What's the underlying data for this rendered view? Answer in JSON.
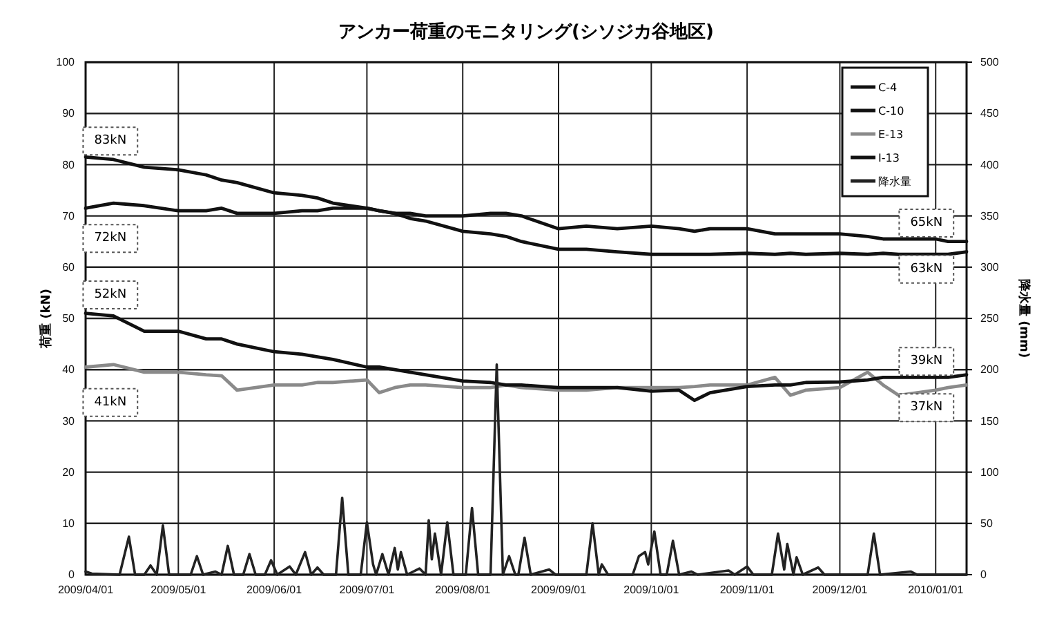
{
  "chart_data": {
    "type": "line",
    "title": "アンカー荷重のモニタリング(シソジカ谷地区)",
    "ylabel": "荷重 (kN)",
    "y2label": "降水量 (mm)",
    "x": [
      "2009-04-01",
      "2009-04-10",
      "2009-04-20",
      "2009-05-01",
      "2009-05-10",
      "2009-05-15",
      "2009-05-20",
      "2009-06-01",
      "2009-06-10",
      "2009-06-15",
      "2009-06-20",
      "2009-07-01",
      "2009-07-05",
      "2009-07-10",
      "2009-07-15",
      "2009-07-20",
      "2009-08-01",
      "2009-08-10",
      "2009-08-15",
      "2009-08-20",
      "2009-09-01",
      "2009-09-10",
      "2009-09-20",
      "2009-10-01",
      "2009-10-10",
      "2009-10-15",
      "2009-10-20",
      "2009-11-01",
      "2009-11-10",
      "2009-11-15",
      "2009-11-20",
      "2009-12-01",
      "2009-12-10",
      "2009-12-15",
      "2009-12-20",
      "2010-01-01",
      "2010-01-05",
      "2010-01-11"
    ],
    "series": [
      {
        "name": "C-4",
        "color": "#111111",
        "values": [
          81.5,
          81,
          79.5,
          79,
          78,
          77,
          76.5,
          74.5,
          74,
          73.5,
          72.5,
          71.5,
          71,
          70.5,
          69.5,
          69,
          67,
          66.5,
          66,
          65,
          63.5,
          63.5,
          63,
          62.5,
          62.5,
          62.5,
          62.5,
          62.7,
          62.5,
          62.7,
          62.5,
          62.7,
          62.5,
          62.7,
          62.5,
          62.5,
          62.5,
          63
        ]
      },
      {
        "name": "C-10",
        "color": "#111111",
        "values": [
          71.5,
          72.5,
          72,
          71,
          71,
          71.5,
          70.5,
          70.5,
          71,
          71,
          71.5,
          71.5,
          71,
          70.5,
          70.5,
          70,
          70,
          70.5,
          70.5,
          70,
          67.5,
          68,
          67.5,
          68,
          67.5,
          67,
          67.5,
          67.5,
          66.5,
          66.5,
          66.5,
          66.5,
          66,
          65.5,
          65.5,
          65.5,
          65,
          65
        ]
      },
      {
        "name": "E-13",
        "color": "#8a8a8a",
        "values": [
          40.5,
          41,
          39.5,
          39.5,
          39,
          38.8,
          36,
          37,
          37,
          37.5,
          37.5,
          38,
          35.5,
          36.5,
          37,
          37,
          36.5,
          36.5,
          37,
          36.5,
          36,
          36,
          36.5,
          36.5,
          36.5,
          36.7,
          37,
          37,
          38.5,
          35,
          36,
          36.5,
          39.5,
          37,
          35,
          36,
          36.5,
          37
        ]
      },
      {
        "name": "I-13",
        "color": "#111111",
        "values": [
          51,
          50.5,
          47.5,
          47.5,
          46,
          46,
          45,
          43.5,
          43,
          42.5,
          42,
          40.5,
          40.5,
          40,
          39.5,
          39,
          37.8,
          37.5,
          37,
          37,
          36.5,
          36.5,
          36.5,
          35.8,
          36,
          34,
          35.5,
          36.7,
          37,
          37,
          37.5,
          37.6,
          38,
          38.5,
          38.5,
          38.5,
          38.5,
          39
        ]
      },
      {
        "name": "降水量",
        "color": "#222222",
        "axis": "y2",
        "x": [
          "2009-04-01",
          "2009-04-03",
          "2009-04-12",
          "2009-04-15",
          "2009-04-17",
          "2009-04-20",
          "2009-04-22",
          "2009-04-24",
          "2009-04-26",
          "2009-04-28",
          "2009-05-05",
          "2009-05-07",
          "2009-05-09",
          "2009-05-13",
          "2009-05-15",
          "2009-05-17",
          "2009-05-19",
          "2009-05-22",
          "2009-05-24",
          "2009-05-26",
          "2009-05-29",
          "2009-05-31",
          "2009-06-02",
          "2009-06-06",
          "2009-06-08",
          "2009-06-11",
          "2009-06-13",
          "2009-06-15",
          "2009-06-17",
          "2009-06-21",
          "2009-06-23",
          "2009-06-25",
          "2009-06-29",
          "2009-07-01",
          "2009-07-03",
          "2009-07-04",
          "2009-07-06",
          "2009-07-08",
          "2009-07-10",
          "2009-07-11",
          "2009-07-12",
          "2009-07-14",
          "2009-07-18",
          "2009-07-20",
          "2009-07-21",
          "2009-07-22",
          "2009-07-23",
          "2009-07-25",
          "2009-07-27",
          "2009-07-29",
          "2009-08-02",
          "2009-08-04",
          "2009-08-06",
          "2009-08-10",
          "2009-08-12",
          "2009-08-14",
          "2009-08-16",
          "2009-08-18",
          "2009-08-19",
          "2009-08-21",
          "2009-08-23",
          "2009-08-29",
          "2009-08-31",
          "2009-09-10",
          "2009-09-12",
          "2009-09-14",
          "2009-09-15",
          "2009-09-17",
          "2009-09-25",
          "2009-09-27",
          "2009-09-29",
          "2009-09-30",
          "2009-10-02",
          "2009-10-04",
          "2009-10-06",
          "2009-10-08",
          "2009-10-10",
          "2009-10-14",
          "2009-10-16",
          "2009-10-26",
          "2009-10-28",
          "2009-11-01",
          "2009-11-03",
          "2009-11-09",
          "2009-11-11",
          "2009-11-13",
          "2009-11-14",
          "2009-11-16",
          "2009-11-17",
          "2009-11-19",
          "2009-11-24",
          "2009-11-26",
          "2009-12-10",
          "2009-12-12",
          "2009-12-14",
          "2009-12-24",
          "2009-12-26",
          "2010-01-11"
        ],
        "values": [
          3,
          1,
          0,
          37,
          0,
          0,
          9,
          0,
          48,
          0,
          0,
          18,
          0,
          3,
          0,
          28,
          0,
          0,
          20,
          0,
          0,
          14,
          0,
          8,
          0,
          22,
          0,
          7,
          0,
          0,
          75,
          0,
          0,
          51,
          10,
          0,
          20,
          0,
          26,
          5,
          22,
          0,
          6,
          0,
          53,
          15,
          40,
          0,
          51,
          0,
          0,
          65,
          0,
          0,
          205,
          0,
          18,
          0,
          0,
          36,
          0,
          5,
          0,
          0,
          50,
          0,
          10,
          0,
          0,
          18,
          22,
          10,
          42,
          0,
          0,
          33,
          0,
          3,
          0,
          4,
          0,
          8,
          0,
          0,
          40,
          5,
          30,
          0,
          17,
          0,
          7,
          0,
          0,
          40,
          0,
          3,
          0,
          0
        ]
      }
    ],
    "xlim": [
      "2009-04-01",
      "2010-01-11"
    ],
    "xticks": [
      {
        "value": "2009-04-01",
        "label": "2009/04/01"
      },
      {
        "value": "2009-05-01",
        "label": "2009/05/01"
      },
      {
        "value": "2009-06-01",
        "label": "2009/06/01"
      },
      {
        "value": "2009-07-01",
        "label": "2009/07/01"
      },
      {
        "value": "2009-08-01",
        "label": "2009/08/01"
      },
      {
        "value": "2009-09-01",
        "label": "2009/09/01"
      },
      {
        "value": "2009-10-01",
        "label": "2009/10/01"
      },
      {
        "value": "2009-11-01",
        "label": "2009/11/01"
      },
      {
        "value": "2009-12-01",
        "label": "2009/12/01"
      },
      {
        "value": "2010-01-01",
        "label": "2010/01/01"
      }
    ],
    "ylim": [
      0,
      100
    ],
    "yticks": [
      0,
      10,
      20,
      30,
      40,
      50,
      60,
      70,
      80,
      90,
      100
    ],
    "y2lim": [
      0,
      500
    ],
    "y2ticks": [
      0,
      50,
      100,
      150,
      200,
      250,
      300,
      350,
      400,
      450,
      500
    ],
    "grid": true,
    "legend": "top right",
    "line_style": "solid",
    "marker": "none",
    "annotations": [
      {
        "text": "83kN",
        "x": "2009-04-09",
        "y": 85
      },
      {
        "text": "72kN",
        "x": "2009-04-09",
        "y": 66
      },
      {
        "text": "52kN",
        "x": "2009-04-09",
        "y": 55
      },
      {
        "text": "41kN",
        "x": "2009-04-09",
        "y": 34
      },
      {
        "text": "65kN",
        "x": "2009-12-29",
        "y": 69
      },
      {
        "text": "63kN",
        "x": "2009-12-29",
        "y": 60
      },
      {
        "text": "39kN",
        "x": "2009-12-29",
        "y": 42
      },
      {
        "text": "37kN",
        "x": "2009-12-29",
        "y": 33
      }
    ]
  }
}
